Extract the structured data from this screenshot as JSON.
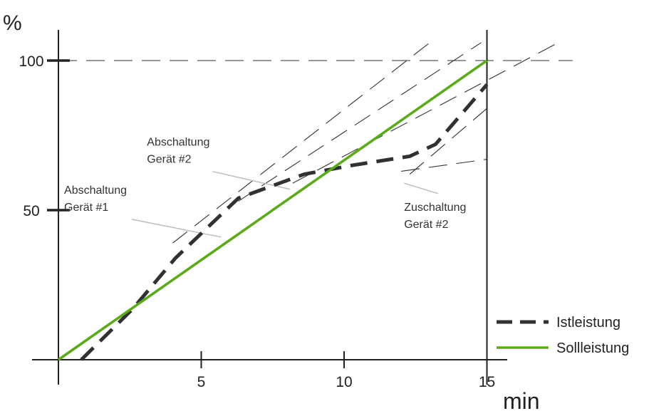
{
  "chart_data": {
    "type": "line",
    "ylabel": "%",
    "xlabel": "min",
    "xlim": [
      -1.2,
      18
    ],
    "ylim": [
      0,
      115
    ],
    "x_ticks": [
      5,
      10,
      15
    ],
    "y_ticks": [
      50,
      100
    ],
    "x_tick_labels": [
      "5",
      "10",
      "15"
    ],
    "y_tick_labels": [
      "50",
      "100"
    ],
    "series": [
      {
        "name": "Istleistung",
        "style": "dashed",
        "color": "#2f3133",
        "x": [
          0.8,
          2.6,
          4.1,
          6.3,
          8.6,
          10.3,
          12.3,
          13.2,
          15.0
        ],
        "y": [
          0,
          17,
          34,
          54,
          62,
          65,
          68,
          72,
          92
        ]
      },
      {
        "name": "Sollleistung",
        "style": "solid",
        "color": "#5aab1a",
        "x": [
          0,
          15
        ],
        "y": [
          0,
          100
        ]
      }
    ],
    "reference_lines": [
      {
        "style": "dashed-thin",
        "x": [
          0,
          18
        ],
        "y": [
          100,
          100
        ]
      },
      {
        "style": "dashed-thin",
        "x": [
          4.0,
          13.0
        ],
        "y": [
          39,
          106
        ]
      },
      {
        "style": "dashed-thin",
        "x": [
          6.3,
          14.8
        ],
        "y": [
          53,
          106
        ]
      },
      {
        "style": "dashed-thin",
        "x": [
          8.2,
          17.5
        ],
        "y": [
          59,
          106
        ]
      },
      {
        "style": "dashed-thin",
        "x": [
          12.3,
          15.0
        ],
        "y": [
          62,
          84
        ]
      },
      {
        "style": "dashed-thin",
        "x": [
          12.0,
          15.0
        ],
        "y": [
          63,
          67
        ]
      }
    ],
    "annotations": [
      {
        "lines": [
          "Abschaltung",
          "Gerät #1"
        ],
        "x": 0.2,
        "y": 55.5,
        "leader_to": [
          5.7,
          41
        ]
      },
      {
        "lines": [
          "Abschaltung",
          "Gerät #2"
        ],
        "x": 3.1,
        "y": 71.5,
        "leader_to": [
          8.1,
          57
        ]
      },
      {
        "lines": [
          "Zuschaltung",
          "Gerät #2"
        ],
        "x": 12.1,
        "y": 49.8,
        "leader_to": [
          12.1,
          59
        ]
      }
    ],
    "legend": {
      "position": "bottom-right",
      "entries": [
        {
          "label": "Istleistung",
          "style": "dashed",
          "color": "#2f3133"
        },
        {
          "label": "Sollleistung",
          "style": "solid",
          "color": "#5aab1a"
        }
      ]
    }
  }
}
